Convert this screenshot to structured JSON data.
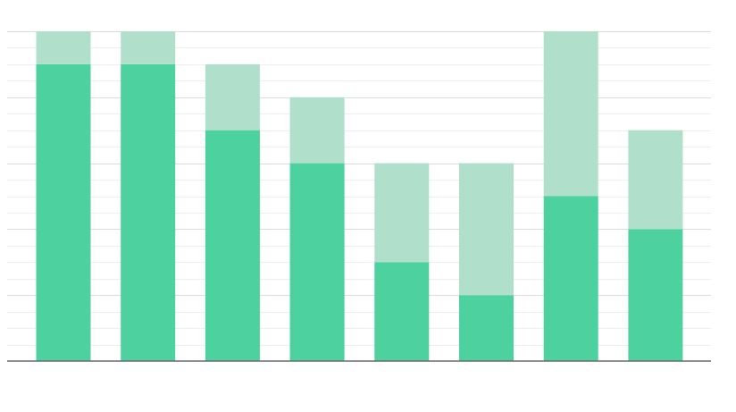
{
  "chart_data": {
    "type": "bar",
    "stacked": true,
    "categories": [
      "",
      "",
      "",
      "",
      "",
      "",
      "",
      ""
    ],
    "series": [
      {
        "values": [
          9,
          9,
          7,
          6,
          3,
          2,
          5,
          4
        ]
      },
      {
        "values": [
          1,
          1,
          2,
          2,
          3,
          4,
          5,
          3
        ]
      }
    ],
    "colors": [
      "#4cd19f",
      "#b0dfcc"
    ],
    "ylim": [
      0,
      10
    ],
    "grid": true,
    "minor_grid": true,
    "legend": "none"
  }
}
